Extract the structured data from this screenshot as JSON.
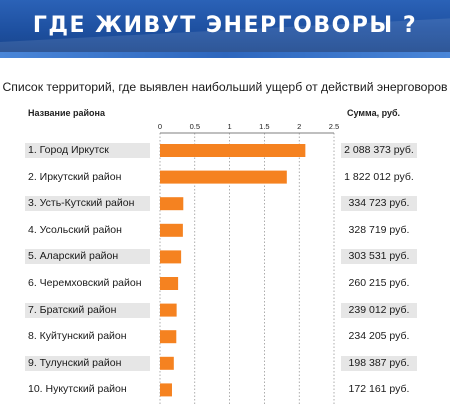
{
  "banner": {
    "title": "ГДЕ ЖИВУТ ЭНЕРГОВОРЫ ?"
  },
  "subtitle": "Список территорий, где выявлен наибольший ущерб от действий энерговоров",
  "headers": {
    "region": "Название района",
    "sum": "Сумма, руб."
  },
  "colors": {
    "bar": "#f58220",
    "banner": "#1d4f9f",
    "stripe": "#e6e6e6"
  },
  "chart_data": {
    "type": "bar",
    "orientation": "horizontal",
    "xlim": [
      0,
      2.5
    ],
    "ticks": [
      "0",
      "0.5",
      "1",
      "1.5",
      "2",
      "2.5"
    ],
    "tick_values": [
      0,
      0.5,
      1,
      1.5,
      2,
      2.5
    ],
    "rows": [
      {
        "label": "1. Город Иркутск",
        "sum": "2 088 373 руб.",
        "value": 2.088373
      },
      {
        "label": "2.  Иркутский район",
        "sum": "1 822 012 руб.",
        "value": 1.822012
      },
      {
        "label": "3.  Усть-Кутский район",
        "sum": "334 723 руб.",
        "value": 0.334723
      },
      {
        "label": "4.  Усольский район",
        "sum": "328 719 руб.",
        "value": 0.328719
      },
      {
        "label": "5.  Аларский район",
        "sum": "303 531 руб.",
        "value": 0.303531
      },
      {
        "label": "6.  Черемховский район",
        "sum": "260 215 руб.",
        "value": 0.260215
      },
      {
        "label": "7.  Братский район",
        "sum": "239 012 руб.",
        "value": 0.239012
      },
      {
        "label": "8.  Куйтунский район",
        "sum": "234 205 руб.",
        "value": 0.234205
      },
      {
        "label": "9.  Тулунский район",
        "sum": "198 387 руб.",
        "value": 0.198387
      },
      {
        "label": "10. Нукутский район",
        "sum": "172 161 руб.",
        "value": 0.172161
      }
    ]
  }
}
